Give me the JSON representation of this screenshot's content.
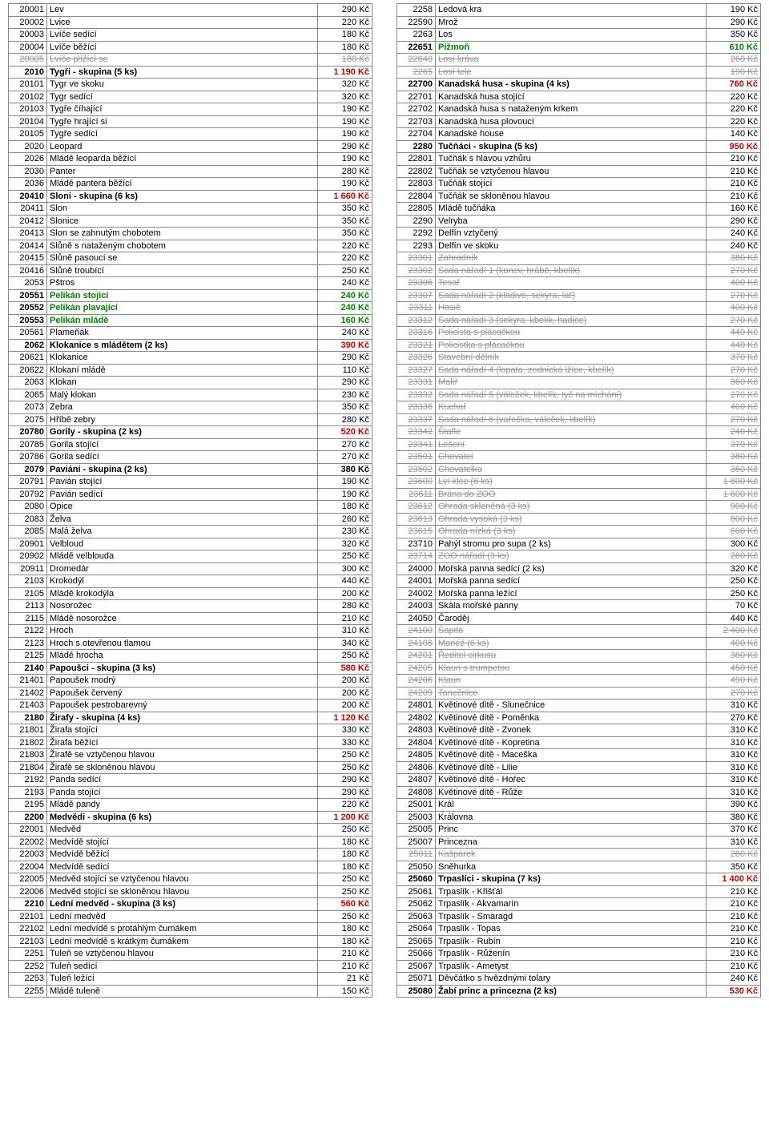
{
  "currency": "Kč",
  "leftRows": [
    {
      "code": "20001",
      "name": "Lev",
      "price": "290 Kč"
    },
    {
      "code": "20002",
      "name": "Lvice",
      "price": "220 Kč"
    },
    {
      "code": "20003",
      "name": "Lvíče sedící",
      "price": "180 Kč"
    },
    {
      "code": "20004",
      "name": "Lvíče běžící",
      "price": "180 Kč"
    },
    {
      "code": "20005",
      "name": "Lvíče plížící se",
      "price": "180 Kč",
      "strike": true
    },
    {
      "code": "2010",
      "name": "Tygři - skupina (5 ks)",
      "price": "1 190 Kč",
      "bold": true,
      "priceColor": "red"
    },
    {
      "code": "20101",
      "name": "Tygr ve skoku",
      "price": "320 Kč"
    },
    {
      "code": "20102",
      "name": "Tygr sedící",
      "price": "320 Kč"
    },
    {
      "code": "20103",
      "name": "Tygře číhající",
      "price": "190 Kč"
    },
    {
      "code": "20104",
      "name": "Tygře hrající si",
      "price": "190 Kč"
    },
    {
      "code": "20105",
      "name": "Tygře sedící",
      "price": "190 Kč"
    },
    {
      "code": "2020",
      "name": "Leopard",
      "price": "290 Kč"
    },
    {
      "code": "2026",
      "name": "Mládě leoparda běžící",
      "price": "190 Kč"
    },
    {
      "code": "2030",
      "name": "Panter",
      "price": "280 Kč"
    },
    {
      "code": "2036",
      "name": "Mládě pantera běžící",
      "price": "190 Kč"
    },
    {
      "code": "20410",
      "name": "Sloni - skupina (6 ks)",
      "price": "1 660 Kč",
      "bold": true,
      "priceColor": "red"
    },
    {
      "code": "20411",
      "name": "Slon",
      "price": "350 Kč"
    },
    {
      "code": "20412",
      "name": "Slonice",
      "price": "350 Kč"
    },
    {
      "code": "20413",
      "name": "Slon se zahnutým chobotem",
      "price": "350 Kč"
    },
    {
      "code": "20414",
      "name": "Slůně s nataženým chobotem",
      "price": "220 Kč"
    },
    {
      "code": "20415",
      "name": "Slůně pasoucí se",
      "price": "220 Kč"
    },
    {
      "code": "20416",
      "name": "Slůně troubící",
      "price": "250 Kč"
    },
    {
      "code": "2053",
      "name": "Pštros",
      "price": "240 Kč"
    },
    {
      "code": "20551",
      "name": "Pelikán stojící",
      "price": "240 Kč",
      "bold": true,
      "nameColor": "green",
      "priceColor": "green"
    },
    {
      "code": "20552",
      "name": "Pelikán plavající",
      "price": "240 Kč",
      "bold": true,
      "nameColor": "green",
      "priceColor": "green"
    },
    {
      "code": "20553",
      "name": "Pelikán mládě",
      "price": "160 Kč",
      "bold": true,
      "nameColor": "green",
      "priceColor": "green"
    },
    {
      "code": "20561",
      "name": "Plameňák",
      "price": "240 Kč"
    },
    {
      "code": "2062",
      "name": "Klokanice s mládětem (2 ks)",
      "price": "390 Kč",
      "bold": true,
      "priceColor": "red"
    },
    {
      "code": "20621",
      "name": "Klokanice",
      "price": "290 Kč"
    },
    {
      "code": "20622",
      "name": "Klokaní mládě",
      "price": "110 Kč"
    },
    {
      "code": "2063",
      "name": "Klokan",
      "price": "290 Kč"
    },
    {
      "code": "2065",
      "name": "Malý klokan",
      "price": "230 Kč"
    },
    {
      "code": "2073",
      "name": "Zebra",
      "price": "350 Kč"
    },
    {
      "code": "2075",
      "name": "Hříbě zebry",
      "price": "280 Kč"
    },
    {
      "code": "20780",
      "name": "Gorily - skupina (2 ks)",
      "price": "520 Kč",
      "bold": true,
      "priceColor": "red"
    },
    {
      "code": "20785",
      "name": "Gorila stojící",
      "price": "270 Kč"
    },
    {
      "code": "20786",
      "name": "Gorila sedící",
      "price": "270 Kč"
    },
    {
      "code": "2079",
      "name": "Paviáni - skupina (2 ks)",
      "price": "380 Kč",
      "bold": true
    },
    {
      "code": "20791",
      "name": "Pavián stojící",
      "price": "190 Kč"
    },
    {
      "code": "20792",
      "name": "Pavián sedící",
      "price": "190 Kč"
    },
    {
      "code": "2080",
      "name": "Opice",
      "price": "180 Kč"
    },
    {
      "code": "2083",
      "name": "Želva",
      "price": "260 Kč"
    },
    {
      "code": "2085",
      "name": "Malá želva",
      "price": "230 Kč"
    },
    {
      "code": "20901",
      "name": "Velbloud",
      "price": "320 Kč"
    },
    {
      "code": "20902",
      "name": "Mládě velblouda",
      "price": "250 Kč"
    },
    {
      "code": "20911",
      "name": "Dromedár",
      "price": "300 Kč"
    },
    {
      "code": "2103",
      "name": "Krokodýl",
      "price": "440 Kč"
    },
    {
      "code": "2105",
      "name": "Mládě krokodýla",
      "price": "200 Kč"
    },
    {
      "code": "2113",
      "name": "Nosorožec",
      "price": "280 Kč"
    },
    {
      "code": "2115",
      "name": "Mládě nosorožce",
      "price": "210 Kč"
    },
    {
      "code": "2122",
      "name": "Hroch",
      "price": "310 Kč"
    },
    {
      "code": "2123",
      "name": "Hroch s otevřenou tlamou",
      "price": "340 Kč"
    },
    {
      "code": "2125",
      "name": "Mládě hrocha",
      "price": "250 Kč"
    },
    {
      "code": "2140",
      "name": "Papoušci - skupina (3 ks)",
      "price": "580 Kč",
      "bold": true,
      "priceColor": "red"
    },
    {
      "code": "21401",
      "name": "Papoušek modrý",
      "price": "200 Kč"
    },
    {
      "code": "21402",
      "name": "Papoušek červený",
      "price": "200 Kč"
    },
    {
      "code": "21403",
      "name": "Papoušek pestrobarevný",
      "price": "200 Kč"
    },
    {
      "code": "2180",
      "name": "Žirafy - skupina (4 ks)",
      "price": "1 120 Kč",
      "bold": true,
      "priceColor": "red"
    },
    {
      "code": "21801",
      "name": "Žirafa stojící",
      "price": "330 Kč"
    },
    {
      "code": "21802",
      "name": "Žirafa běžící",
      "price": "330 Kč"
    },
    {
      "code": "21803",
      "name": "Žirafě se vztyčenou hlavou",
      "price": "250 Kč"
    },
    {
      "code": "21804",
      "name": "Žirafě se skloněnou hlavou",
      "price": "250 Kč"
    },
    {
      "code": "2192",
      "name": "Panda sedící",
      "price": "290 Kč"
    },
    {
      "code": "2193",
      "name": "Panda stojící",
      "price": "290 Kč"
    },
    {
      "code": "2195",
      "name": "Mládě pandy",
      "price": "220 Kč"
    },
    {
      "code": "2200",
      "name": "Medvědi - skupina (6 ks)",
      "price": "1 200 Kč",
      "bold": true,
      "priceColor": "red"
    },
    {
      "code": "22001",
      "name": "Medvěd",
      "price": "250 Kč"
    },
    {
      "code": "22002",
      "name": "Medvídě stojící",
      "price": "180 Kč"
    },
    {
      "code": "22003",
      "name": "Medvídě běžící",
      "price": "180 Kč"
    },
    {
      "code": "22004",
      "name": "Medvídě sedící",
      "price": "180 Kč"
    },
    {
      "code": "22005",
      "name": "Medvěd stojící se vztyčenou hlavou",
      "price": "250 Kč"
    },
    {
      "code": "22006",
      "name": "Medvěd stojící se skloněnou hlavou",
      "price": "250 Kč"
    },
    {
      "code": "2210",
      "name": "Lední medvěd - skupina (3 ks)",
      "price": "560 Kč",
      "bold": true,
      "priceColor": "red"
    },
    {
      "code": "22101",
      "name": "Lední medvěd",
      "price": "250 Kč"
    },
    {
      "code": "22102",
      "name": "Lední medvídě s protáhlým čumákem",
      "price": "180 Kč"
    },
    {
      "code": "22103",
      "name": "Lední medvídě s krátkým čumákem",
      "price": "180 Kč"
    },
    {
      "code": "2251",
      "name": "Tuleň se vztyčenou hlavou",
      "price": "210 Kč"
    },
    {
      "code": "2252",
      "name": "Tuleň sedící",
      "price": "210 Kč"
    },
    {
      "code": "2253",
      "name": "Tuleň ležící",
      "price": "21 Kč"
    },
    {
      "code": "2255",
      "name": "Mládě tuleně",
      "price": "150 Kč"
    }
  ],
  "rightRows": [
    {
      "code": "2258",
      "name": "Ledová kra",
      "price": "190 Kč"
    },
    {
      "code": "22590",
      "name": "Mrož",
      "price": "290 Kč"
    },
    {
      "code": "2263",
      "name": "Los",
      "price": "350 Kč"
    },
    {
      "code": "22651",
      "name": "Pižmoň",
      "price": "610 Kč",
      "bold": true,
      "nameColor": "green",
      "priceColor": "green"
    },
    {
      "code": "22640",
      "name": "Losí kráva",
      "price": "260 Kč",
      "strike": true
    },
    {
      "code": "2265",
      "name": "Losí tele",
      "price": "190 Kč",
      "strike": true
    },
    {
      "code": "22700",
      "name": "Kanadská husa - skupina (4 ks)",
      "price": "760 Kč",
      "bold": true,
      "priceColor": "red"
    },
    {
      "code": "22701",
      "name": "Kanadská husa stojící",
      "price": "220 Kč"
    },
    {
      "code": "22702",
      "name": "Kanadská husa s nataženým krkem",
      "price": "220 Kč"
    },
    {
      "code": "22703",
      "name": "Kanadská husa plovoucí",
      "price": "220 Kč"
    },
    {
      "code": "22704",
      "name": "Kanadské house",
      "price": "140 Kč"
    },
    {
      "code": "2280",
      "name": "Tučňáci - skupina (5 ks)",
      "price": "950 Kč",
      "bold": true,
      "priceColor": "red"
    },
    {
      "code": "22801",
      "name": "Tučňák s hlavou vzhůru",
      "price": "210 Kč"
    },
    {
      "code": "22802",
      "name": "Tučňák se vztyčenou hlavou",
      "price": "210 Kč"
    },
    {
      "code": "22803",
      "name": "Tučňák stojící",
      "price": "210 Kč"
    },
    {
      "code": "22804",
      "name": "Tučňák se skloněnou hlavou",
      "price": "210 Kč"
    },
    {
      "code": "22805",
      "name": "Mládě tučňáka",
      "price": "160 Kč"
    },
    {
      "code": "2290",
      "name": "Velryba",
      "price": "290 Kč"
    },
    {
      "code": "2292",
      "name": "Delfín vztyčený",
      "price": "240 Kč"
    },
    {
      "code": "2293",
      "name": "Delfín ve skoku",
      "price": "240 Kč"
    },
    {
      "code": "23301",
      "name": "Zahradník",
      "price": "380 Kč",
      "strike": true
    },
    {
      "code": "23302",
      "name": "Sada nářadí 1 (konev, hrábě, kbelík)",
      "price": "270 Kč",
      "strike": true
    },
    {
      "code": "23306",
      "name": "Tesař",
      "price": "400 Kč",
      "strike": true
    },
    {
      "code": "23307",
      "name": "Sada nářadí 2 (kladivo, sekyra, lať)",
      "price": "270 Kč",
      "strike": true
    },
    {
      "code": "23311",
      "name": "Hasič",
      "price": "400 Kč",
      "strike": true
    },
    {
      "code": "23312",
      "name": "Sada nářadí 3 (sekyra, kbelík, hadice)",
      "price": "270 Kč",
      "strike": true
    },
    {
      "code": "23316",
      "name": "Policista s plácačkou",
      "price": "440 Kč",
      "strike": true
    },
    {
      "code": "23321",
      "name": "Policistka s plácačkou",
      "price": "440 Kč",
      "strike": true
    },
    {
      "code": "23326",
      "name": "Stavební dělník",
      "price": "370 Kč",
      "strike": true
    },
    {
      "code": "23327",
      "name": "Sada nářadí 4 (lopata, zednická lžíce, kbelík)",
      "price": "270 Kč",
      "strike": true
    },
    {
      "code": "23331",
      "name": "Malíř",
      "price": "360 Kč",
      "strike": true
    },
    {
      "code": "23332",
      "name": "Sada nářadí 5 (váleček, kbelík, tyč na míchání)",
      "price": "270 Kč",
      "strike": true
    },
    {
      "code": "23336",
      "name": "Kuchař",
      "price": "400 Kč",
      "strike": true
    },
    {
      "code": "23337",
      "name": "Sada nářadí 6 (vařečka, váleček, kbelík)",
      "price": "270 Kč",
      "strike": true
    },
    {
      "code": "23342",
      "name": "Štafle",
      "price": "240 Kč",
      "strike": true
    },
    {
      "code": "23341",
      "name": "Lešení",
      "price": "370 Kč",
      "strike": true
    },
    {
      "code": "23501",
      "name": "Chovatel",
      "price": "380 Kč",
      "strike": true
    },
    {
      "code": "23502",
      "name": "Chovatelka",
      "price": "360 Kč",
      "strike": true
    },
    {
      "code": "23600",
      "name": "Lví klec (6 ks)",
      "price": "1 800 Kč",
      "strike": true
    },
    {
      "code": "23611",
      "name": "Brána do ZOO",
      "price": "1 600 Kč",
      "strike": true
    },
    {
      "code": "23612",
      "name": "Ohrada skleněná (3 ks)",
      "price": "900 Kč",
      "strike": true
    },
    {
      "code": "23613",
      "name": "Ohrada vysoká (3 ks)",
      "price": "800 Kč",
      "strike": true
    },
    {
      "code": "23615",
      "name": "Ohrada nízká (3 ks)",
      "price": "600 Kč",
      "strike": true
    },
    {
      "code": "23710",
      "name": "Pahýl stromu pro supa (2 ks)",
      "price": "300 Kč"
    },
    {
      "code": "23714",
      "name": "ZOO nářadí (3 ks)",
      "price": "280 Kč",
      "strike": true
    },
    {
      "code": "24000",
      "name": "Mořská panna sedící (2 ks)",
      "price": "320 Kč"
    },
    {
      "code": "24001",
      "name": "Mořská panna sedící",
      "price": "250 Kč"
    },
    {
      "code": "24002",
      "name": "Mořská panna ležící",
      "price": "250 Kč"
    },
    {
      "code": "24003",
      "name": "Skála mořské panny",
      "price": "70 Kč"
    },
    {
      "code": "24050",
      "name": "Čaroděj",
      "price": "440 Kč"
    },
    {
      "code": "24100",
      "name": "Šapitó",
      "price": "2 400 Kč",
      "strike": true
    },
    {
      "code": "24106",
      "name": "Manéž (6 ks)",
      "price": "400 Kč",
      "strike": true
    },
    {
      "code": "24201",
      "name": "Ředitel cirkusu",
      "price": "380 Kč",
      "strike": true
    },
    {
      "code": "24205",
      "name": "Klaun s trumpetou",
      "price": "450 Kč",
      "strike": true
    },
    {
      "code": "24206",
      "name": "Klaun",
      "price": "490 Kč",
      "strike": true
    },
    {
      "code": "24209",
      "name": "Tanečnice",
      "price": "270 Kč",
      "strike": true
    },
    {
      "code": "24801",
      "name": "Květinové dítě - Slunečnice",
      "price": "310 Kč"
    },
    {
      "code": "24802",
      "name": "Květinové dítě - Poměnka",
      "price": "270 Kč"
    },
    {
      "code": "24803",
      "name": "Květinové dítě - Zvonek",
      "price": "310 Kč"
    },
    {
      "code": "24804",
      "name": "Květinové dítě - Kopretina",
      "price": "310 Kč"
    },
    {
      "code": "24805",
      "name": "Květinové dítě - Maceška",
      "price": "310 Kč"
    },
    {
      "code": "24806",
      "name": "Květinové dítě - Lilie",
      "price": "310 Kč"
    },
    {
      "code": "24807",
      "name": "Květinové dítě - Hořec",
      "price": "310 Kč"
    },
    {
      "code": "24808",
      "name": "Květinové dítě - Růže",
      "price": "310 Kč"
    },
    {
      "code": "25001",
      "name": "Král",
      "price": "390 Kč"
    },
    {
      "code": "25003",
      "name": "Královna",
      "price": "380 Kč"
    },
    {
      "code": "25005",
      "name": "Princ",
      "price": "370 Kč"
    },
    {
      "code": "25007",
      "name": "Princezna",
      "price": "310 Kč"
    },
    {
      "code": "25011",
      "name": "Kašpárek",
      "price": "280 Kč",
      "strike": true
    },
    {
      "code": "25050",
      "name": "Sněhurka",
      "price": "350 Kč"
    },
    {
      "code": "25060",
      "name": "Trpaslíci - skupina (7 ks)",
      "price": "1 400 Kč",
      "bold": true,
      "priceColor": "red"
    },
    {
      "code": "25061",
      "name": "Trpaslík - Křišťál",
      "price": "210 Kč"
    },
    {
      "code": "25062",
      "name": "Trpaslík - Akvamarín",
      "price": "210 Kč"
    },
    {
      "code": "25063",
      "name": "Trpaslík - Smaragd",
      "price": "210 Kč"
    },
    {
      "code": "25064",
      "name": "Trpaslík - Topas",
      "price": "210 Kč"
    },
    {
      "code": "25065",
      "name": "Trpaslík - Rubín",
      "price": "210 Kč"
    },
    {
      "code": "25066",
      "name": "Trpaslík - Růženín",
      "price": "210 Kč"
    },
    {
      "code": "25067",
      "name": "Trpaslík - Ametyst",
      "price": "210 Kč"
    },
    {
      "code": "25071",
      "name": "Děvčátko s hvězdnými tolary",
      "price": "240 Kč"
    },
    {
      "code": "25080",
      "name": "Žabí princ a princezna (2 ks)",
      "price": "530 Kč",
      "bold": true,
      "priceColor": "red"
    }
  ]
}
